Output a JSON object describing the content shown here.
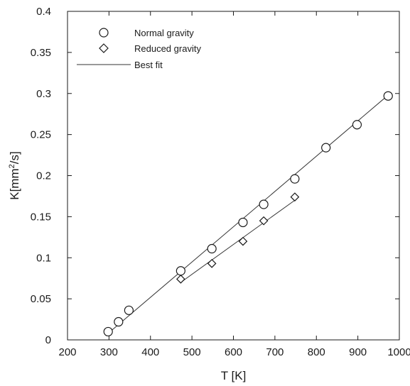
{
  "chart_data": {
    "type": "scatter",
    "xlabel": "T [K]",
    "ylabel_base": "K[mm",
    "ylabel_sup": "2",
    "ylabel_tail": "/s]",
    "xlim": [
      200,
      1000
    ],
    "ylim": [
      0,
      0.4
    ],
    "x_ticks": [
      200,
      300,
      400,
      500,
      600,
      700,
      800,
      900,
      1000
    ],
    "x_tick_labels": [
      "200",
      "300",
      "400",
      "500",
      "600",
      "700",
      "800",
      "900",
      "1000"
    ],
    "y_ticks": [
      0,
      0.05,
      0.1,
      0.15,
      0.2,
      0.25,
      0.3,
      0.35,
      0.4
    ],
    "y_tick_labels": [
      "0",
      "0.05",
      "0.1",
      "0.15",
      "0.2",
      "0.25",
      "0.3",
      "0.35",
      "0.4"
    ],
    "grid": false,
    "legend_position": "top-left",
    "series": [
      {
        "name": "Normal gravity",
        "marker": "circle",
        "x": [
          298,
          323,
          348,
          473,
          548,
          623,
          673,
          748,
          823,
          898,
          973
        ],
        "y": [
          0.01,
          0.022,
          0.036,
          0.084,
          0.111,
          0.143,
          0.165,
          0.196,
          0.234,
          0.262,
          0.297
        ]
      },
      {
        "name": "Reduced gravity",
        "marker": "diamond",
        "x": [
          473,
          548,
          623,
          673,
          748
        ],
        "y": [
          0.074,
          0.093,
          0.12,
          0.145,
          0.174
        ]
      }
    ],
    "fit_lines": [
      {
        "name": "Best fit",
        "x": [
          298,
          973
        ],
        "y": [
          0.008,
          0.298
        ]
      },
      {
        "x": [
          473,
          748
        ],
        "y": [
          0.07,
          0.17
        ]
      }
    ],
    "colors": {
      "marker_stroke": "#1a1a1a",
      "line": "#333333",
      "axis": "#1a1a1a"
    }
  }
}
